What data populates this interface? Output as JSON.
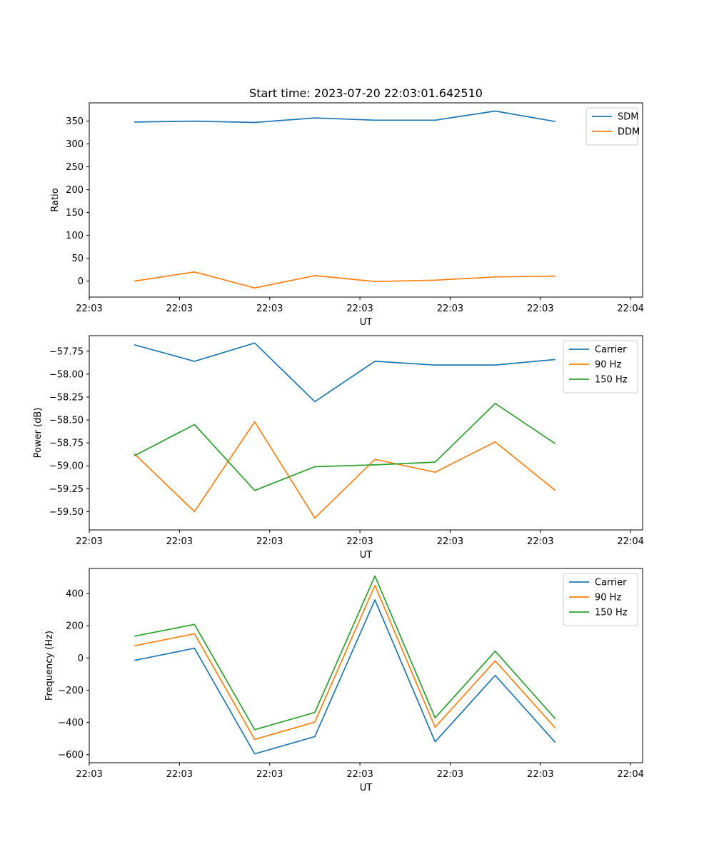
{
  "chart_data": [
    {
      "type": "line",
      "title": "Start time: 2023-07-20 22:03:01.642510",
      "xlabel": "UT",
      "ylabel": "Ratio",
      "x": [
        1,
        2,
        3,
        4,
        5,
        6,
        7,
        8
      ],
      "xlim": [
        0.25,
        9.45
      ],
      "x_ticks": [
        0.25,
        1.75,
        3.25,
        4.75,
        6.25,
        7.75,
        9.25
      ],
      "x_tick_labels": [
        "22:03",
        "22:03",
        "22:03",
        "22:03",
        "22:03",
        "22:03",
        "22:04"
      ],
      "ylim": [
        -35,
        390
      ],
      "y_ticks": [
        0,
        50,
        100,
        150,
        200,
        250,
        300,
        350
      ],
      "legend": "top-right",
      "series": [
        {
          "name": "SDM",
          "color": "#1f77b4",
          "values": [
            348,
            350,
            347,
            357,
            352,
            352,
            372,
            349
          ]
        },
        {
          "name": "DDM",
          "color": "#ff7f0e",
          "values": [
            0,
            20,
            -15,
            12,
            -1,
            2,
            9,
            11
          ]
        }
      ]
    },
    {
      "type": "line",
      "title": "",
      "xlabel": "UT",
      "ylabel": "Power (dB)",
      "x": [
        1,
        2,
        3,
        4,
        5,
        6,
        7,
        8
      ],
      "xlim": [
        0.25,
        9.45
      ],
      "x_ticks": [
        0.25,
        1.75,
        3.25,
        4.75,
        6.25,
        7.75,
        9.25
      ],
      "x_tick_labels": [
        "22:03",
        "22:03",
        "22:03",
        "22:03",
        "22:03",
        "22:03",
        "22:04"
      ],
      "ylim": [
        -59.7,
        -57.58
      ],
      "y_ticks": [
        -59.5,
        -59.25,
        -59.0,
        -58.75,
        -58.5,
        -58.25,
        -58.0,
        -57.75
      ],
      "y_tick_labels": [
        "−59.50",
        "−59.25",
        "−59.00",
        "−58.75",
        "−58.50",
        "−58.25",
        "−58.00",
        "−57.75"
      ],
      "legend": "top-right",
      "series": [
        {
          "name": "Carrier",
          "color": "#1f77b4",
          "values": [
            -57.68,
            -57.86,
            -57.66,
            -58.3,
            -57.86,
            -57.9,
            -57.9,
            -57.84
          ]
        },
        {
          "name": "90 Hz",
          "color": "#ff7f0e",
          "values": [
            -58.87,
            -59.5,
            -58.52,
            -59.57,
            -58.93,
            -59.07,
            -58.74,
            -59.27
          ]
        },
        {
          "name": "150 Hz",
          "color": "#2ca02c",
          "values": [
            -58.89,
            -58.55,
            -59.27,
            -59.01,
            -58.99,
            -58.96,
            -58.32,
            -58.76
          ]
        }
      ]
    },
    {
      "type": "line",
      "title": "",
      "xlabel": "UT",
      "ylabel": "Frequency (Hz)",
      "x": [
        1,
        2,
        3,
        4,
        5,
        6,
        7,
        8
      ],
      "xlim": [
        0.25,
        9.45
      ],
      "x_ticks": [
        0.25,
        1.75,
        3.25,
        4.75,
        6.25,
        7.75,
        9.25
      ],
      "x_tick_labels": [
        "22:03",
        "22:03",
        "22:03",
        "22:03",
        "22:03",
        "22:03",
        "22:04"
      ],
      "ylim": [
        -650,
        555
      ],
      "y_ticks": [
        -600,
        -400,
        -200,
        0,
        200,
        400
      ],
      "y_tick_labels": [
        "−600",
        "−400",
        "−200",
        "0",
        "200",
        "400"
      ],
      "legend": "top-right",
      "series": [
        {
          "name": "Carrier",
          "color": "#1f77b4",
          "values": [
            -15,
            60,
            -595,
            -488,
            360,
            -520,
            -108,
            -525
          ]
        },
        {
          "name": "90 Hz",
          "color": "#ff7f0e",
          "values": [
            75,
            150,
            -505,
            -398,
            450,
            -430,
            -18,
            -435
          ]
        },
        {
          "name": "150 Hz",
          "color": "#2ca02c",
          "values": [
            135,
            208,
            -445,
            -338,
            508,
            -372,
            42,
            -378
          ]
        }
      ]
    }
  ]
}
